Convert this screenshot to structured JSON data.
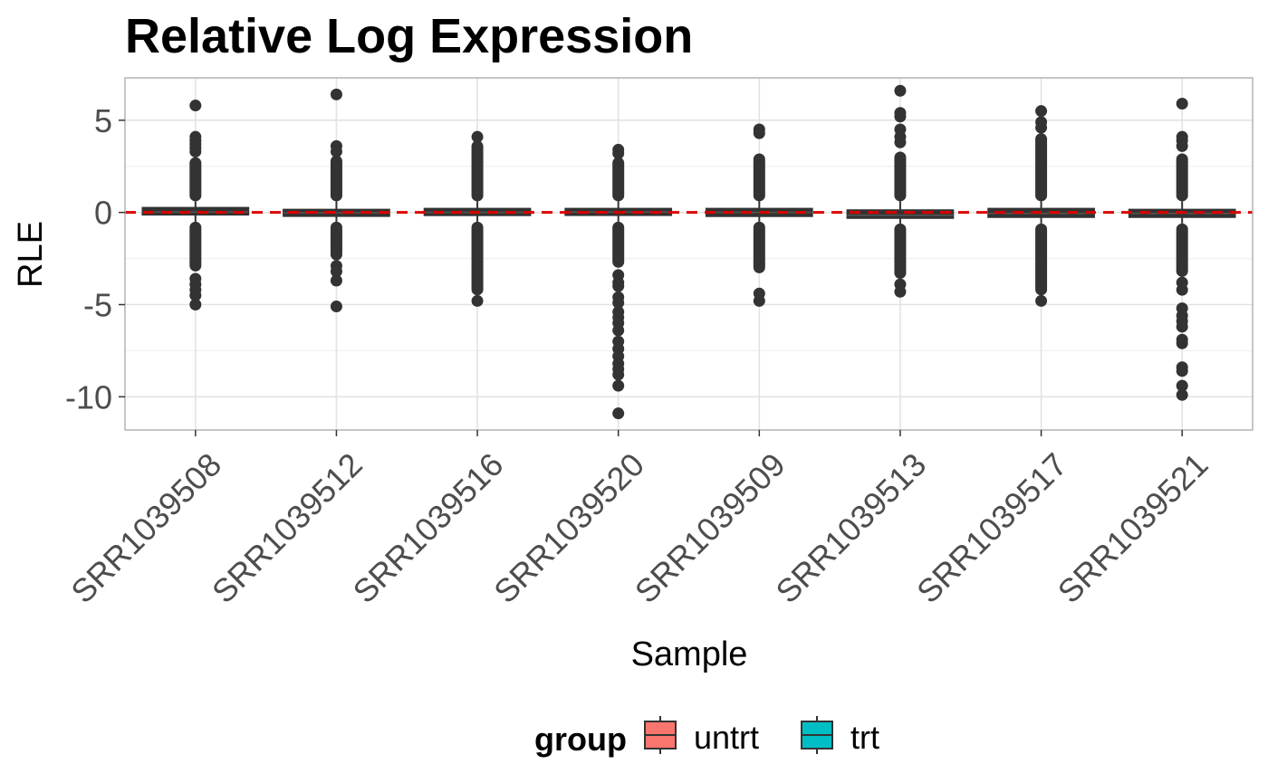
{
  "chart_data": {
    "type": "box",
    "title": "Relative Log Expression",
    "xlabel": "Sample",
    "ylabel": "RLE",
    "ylim": [
      -11.8,
      7.3
    ],
    "yticks": [
      5,
      0,
      -5,
      -10
    ],
    "ytick_labels": [
      "5",
      "0",
      "-5",
      "-10"
    ],
    "grid": true,
    "reference_line": {
      "y": 0,
      "color": "#dd0000",
      "style": "dashed"
    },
    "categories": [
      "SRR1039508",
      "SRR1039512",
      "SRR1039516",
      "SRR1039520",
      "SRR1039509",
      "SRR1039513",
      "SRR1039517",
      "SRR1039521"
    ],
    "legend": {
      "title": "group",
      "position": "bottom",
      "items": [
        {
          "label": "untrt",
          "color": "#f8766d"
        },
        {
          "label": "trt",
          "color": "#00bfc4"
        }
      ]
    },
    "boxes": [
      {
        "sample": "SRR1039508",
        "group": "untrt",
        "q1": -0.12,
        "median": 0.02,
        "q3": 0.25,
        "dense_upper": [
          0.6,
          3.0
        ],
        "dense_lower": [
          -0.5,
          -3.2
        ],
        "outliers_high": [
          3.3,
          3.5,
          3.7,
          3.9,
          4.1,
          5.8
        ],
        "outliers_low": [
          -3.6,
          -3.9,
          -4.2,
          -4.5,
          -5.0
        ]
      },
      {
        "sample": "SRR1039512",
        "group": "untrt",
        "q1": -0.18,
        "median": -0.02,
        "q3": 0.15,
        "dense_upper": [
          0.6,
          3.1
        ],
        "dense_lower": [
          -0.5,
          -2.6
        ],
        "outliers_high": [
          3.3,
          3.6,
          6.4
        ],
        "outliers_low": [
          -2.9,
          -3.2,
          -3.7,
          -5.1
        ]
      },
      {
        "sample": "SRR1039516",
        "group": "untrt",
        "q1": -0.15,
        "median": 0.0,
        "q3": 0.2,
        "dense_upper": [
          0.6,
          3.9
        ],
        "dense_lower": [
          -0.5,
          -4.5
        ],
        "outliers_high": [
          4.1
        ],
        "outliers_low": [
          -4.8
        ]
      },
      {
        "sample": "SRR1039520",
        "group": "untrt",
        "q1": -0.12,
        "median": 0.02,
        "q3": 0.2,
        "dense_upper": [
          0.6,
          3.0
        ],
        "dense_lower": [
          -0.5,
          -3.0
        ],
        "outliers_high": [
          3.2,
          3.4
        ],
        "outliers_low": [
          -3.4,
          -3.8,
          -4.0,
          -4.6,
          -4.9,
          -5.4,
          -5.7,
          -6.0,
          -6.4,
          -7.0,
          -7.4,
          -7.8,
          -8.2,
          -8.5,
          -8.8,
          -9.4,
          -10.9
        ]
      },
      {
        "sample": "SRR1039509",
        "group": "trt",
        "q1": -0.2,
        "median": 0.0,
        "q3": 0.2,
        "dense_upper": [
          0.6,
          3.2
        ],
        "dense_lower": [
          -0.5,
          -3.3
        ],
        "outliers_high": [
          4.3,
          4.5
        ],
        "outliers_low": [
          -4.4,
          -4.8
        ]
      },
      {
        "sample": "SRR1039513",
        "group": "trt",
        "q1": -0.3,
        "median": -0.15,
        "q3": 0.12,
        "dense_upper": [
          0.6,
          3.3
        ],
        "dense_lower": [
          -0.6,
          -3.6
        ],
        "outliers_high": [
          3.8,
          4.1,
          4.5,
          5.2,
          5.4,
          6.6
        ],
        "outliers_low": [
          -3.9,
          -4.3
        ]
      },
      {
        "sample": "SRR1039517",
        "group": "trt",
        "q1": -0.25,
        "median": -0.05,
        "q3": 0.2,
        "dense_upper": [
          0.6,
          4.3
        ],
        "dense_lower": [
          -0.6,
          -4.5
        ],
        "outliers_high": [
          4.6,
          4.9,
          5.5
        ],
        "outliers_low": [
          -4.8
        ]
      },
      {
        "sample": "SRR1039521",
        "group": "trt",
        "q1": -0.25,
        "median": -0.05,
        "q3": 0.15,
        "dense_upper": [
          0.6,
          3.2
        ],
        "dense_lower": [
          -0.6,
          -3.5
        ],
        "outliers_high": [
          3.6,
          3.9,
          4.1,
          5.9
        ],
        "outliers_low": [
          -3.8,
          -4.2,
          -5.2,
          -5.6,
          -5.9,
          -6.2,
          -6.9,
          -7.1,
          -8.4,
          -8.6,
          -9.4,
          -9.9
        ]
      }
    ]
  }
}
